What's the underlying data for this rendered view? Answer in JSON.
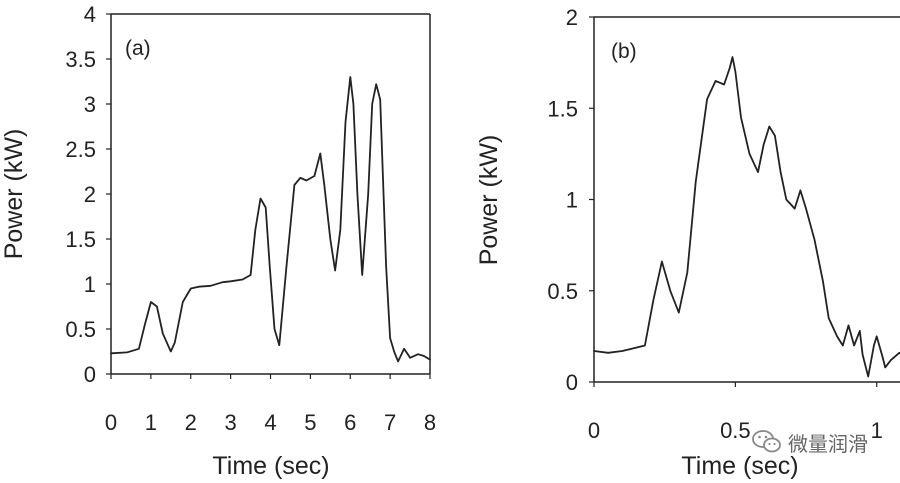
{
  "colors": {
    "line": "#222222",
    "axis": "#222222",
    "text": "#222222"
  },
  "chart_data": [
    {
      "type": "line",
      "panel_label": "(a)",
      "xlabel": "Time (sec)",
      "ylabel": "Power (kW)",
      "xlim": [
        0,
        8
      ],
      "ylim": [
        0,
        4
      ],
      "xticks": [
        "0",
        "1",
        "2",
        "3",
        "4",
        "5",
        "6",
        "7",
        "8"
      ],
      "yticks": [
        "0",
        "0.5",
        "1",
        "1.5",
        "2",
        "2.5",
        "3",
        "3.5",
        "4"
      ],
      "grid": false,
      "series": [
        {
          "x": [
            0.0,
            0.4,
            0.7,
            0.85,
            1.0,
            1.15,
            1.3,
            1.5,
            1.6,
            1.8,
            2.0,
            2.2,
            2.5,
            2.8,
            3.0,
            3.3,
            3.5,
            3.62,
            3.75,
            3.88,
            3.98,
            4.1,
            4.22,
            4.4,
            4.6,
            4.75,
            4.9,
            5.1,
            5.25,
            5.35,
            5.5,
            5.62,
            5.75,
            5.88,
            6.0,
            6.08,
            6.18,
            6.3,
            6.45,
            6.55,
            6.65,
            6.75,
            6.82,
            6.9,
            7.0,
            7.1,
            7.2,
            7.35,
            7.5,
            7.7,
            7.85,
            8.0
          ],
          "y": [
            0.23,
            0.24,
            0.28,
            0.55,
            0.8,
            0.75,
            0.45,
            0.25,
            0.35,
            0.8,
            0.95,
            0.97,
            0.98,
            1.02,
            1.03,
            1.05,
            1.1,
            1.6,
            1.95,
            1.85,
            1.2,
            0.5,
            0.32,
            1.2,
            2.1,
            2.18,
            2.15,
            2.2,
            2.45,
            2.1,
            1.5,
            1.15,
            1.6,
            2.8,
            3.3,
            3.0,
            2.0,
            1.1,
            2.0,
            3.0,
            3.22,
            3.05,
            2.2,
            1.2,
            0.4,
            0.25,
            0.14,
            0.28,
            0.18,
            0.22,
            0.2,
            0.16
          ]
        }
      ]
    },
    {
      "type": "line",
      "panel_label": "(b)",
      "xlabel": "Time (sec)",
      "ylabel": "Power (kW)",
      "xlim": [
        0,
        1.1
      ],
      "ylim": [
        0,
        2
      ],
      "xticks": [
        "0",
        "0.5",
        "1"
      ],
      "ytick_values": [
        0,
        0.5,
        1,
        1.5,
        2
      ],
      "yticks": [
        "0",
        "0.5",
        "1",
        "1.5",
        "2"
      ],
      "grid": false,
      "series": [
        {
          "x": [
            0.0,
            0.05,
            0.1,
            0.18,
            0.21,
            0.24,
            0.27,
            0.3,
            0.33,
            0.36,
            0.4,
            0.43,
            0.46,
            0.48,
            0.49,
            0.5,
            0.52,
            0.55,
            0.58,
            0.6,
            0.62,
            0.64,
            0.66,
            0.68,
            0.71,
            0.73,
            0.75,
            0.78,
            0.81,
            0.83,
            0.86,
            0.88,
            0.9,
            0.92,
            0.94,
            0.95,
            0.97,
            0.99,
            1.0,
            1.02,
            1.03,
            1.05,
            1.08,
            1.1
          ],
          "y": [
            0.17,
            0.16,
            0.17,
            0.2,
            0.45,
            0.66,
            0.5,
            0.38,
            0.6,
            1.1,
            1.55,
            1.65,
            1.63,
            1.72,
            1.78,
            1.7,
            1.45,
            1.25,
            1.15,
            1.3,
            1.4,
            1.35,
            1.15,
            1.0,
            0.95,
            1.05,
            0.95,
            0.78,
            0.55,
            0.35,
            0.25,
            0.2,
            0.31,
            0.2,
            0.28,
            0.15,
            0.03,
            0.2,
            0.25,
            0.14,
            0.08,
            0.12,
            0.16,
            0.14
          ]
        }
      ]
    }
  ],
  "watermark": {
    "text": "微量润滑",
    "icon": "wechat-icon"
  }
}
